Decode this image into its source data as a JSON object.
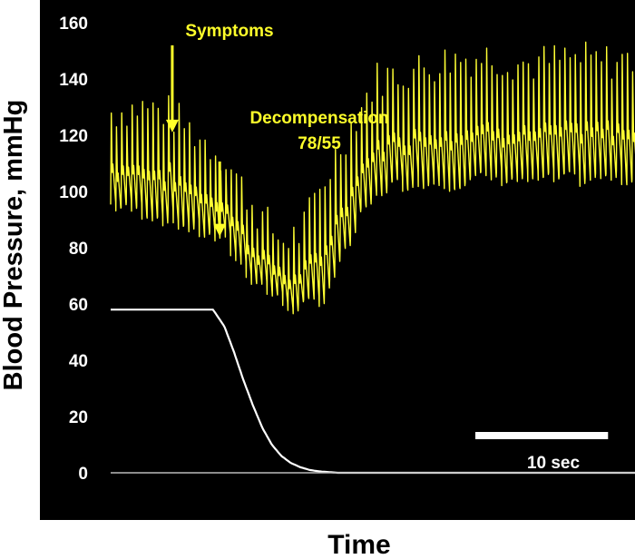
{
  "chart_data": {
    "type": "line",
    "title": "",
    "xlabel": "Time",
    "ylabel": "Blood Pressure, mmHg",
    "ylim": [
      0,
      165
    ],
    "y_ticks": [
      "0",
      "20",
      "40",
      "60",
      "80",
      "100",
      "120",
      "140",
      "160"
    ],
    "grid": false,
    "background": "#000000",
    "series": [
      {
        "id": "arterial-pressure",
        "color": "#ffff33",
        "style": "pulsatile",
        "x_sec": [
          0,
          3,
          6,
          9,
          12,
          14,
          16,
          18,
          20,
          22,
          24,
          26,
          28,
          32,
          36,
          40,
          44,
          48,
          52,
          56
        ],
        "systolic": [
          128,
          130,
          128,
          120,
          112,
          100,
          90,
          82,
          85,
          100,
          115,
          128,
          140,
          143,
          147,
          148,
          145,
          147,
          146,
          147
        ],
        "diastolic": [
          95,
          93,
          90,
          86,
          82,
          72,
          66,
          60,
          58,
          62,
          75,
          90,
          100,
          104,
          103,
          105,
          104,
          104,
          105,
          104
        ]
      },
      {
        "id": "cuff-pressure",
        "color": "#ffffff",
        "style": "smooth",
        "x_sec": [
          0,
          10.8,
          11,
          12,
          13,
          14,
          15,
          16,
          17,
          18,
          19,
          20,
          21,
          22,
          24,
          56
        ],
        "values": [
          58,
          58,
          57,
          52,
          43,
          33,
          24,
          16,
          10,
          6,
          3.5,
          2,
          1,
          0.5,
          0,
          0
        ]
      },
      {
        "id": "baseline",
        "color": "#bbbbbb",
        "style": "flat",
        "x_sec": [
          0,
          56
        ],
        "values": [
          0,
          0
        ]
      }
    ],
    "annotations": [
      {
        "text": "Symptoms",
        "x_sec": 6.5,
        "arrow_tip": 121
      },
      {
        "text": "Decompensation",
        "text2": "78/55",
        "x_sec": 11.5,
        "arrow_tip": 84
      }
    ],
    "scale_bar": {
      "label": "10 sec",
      "length_sec": 10
    }
  }
}
